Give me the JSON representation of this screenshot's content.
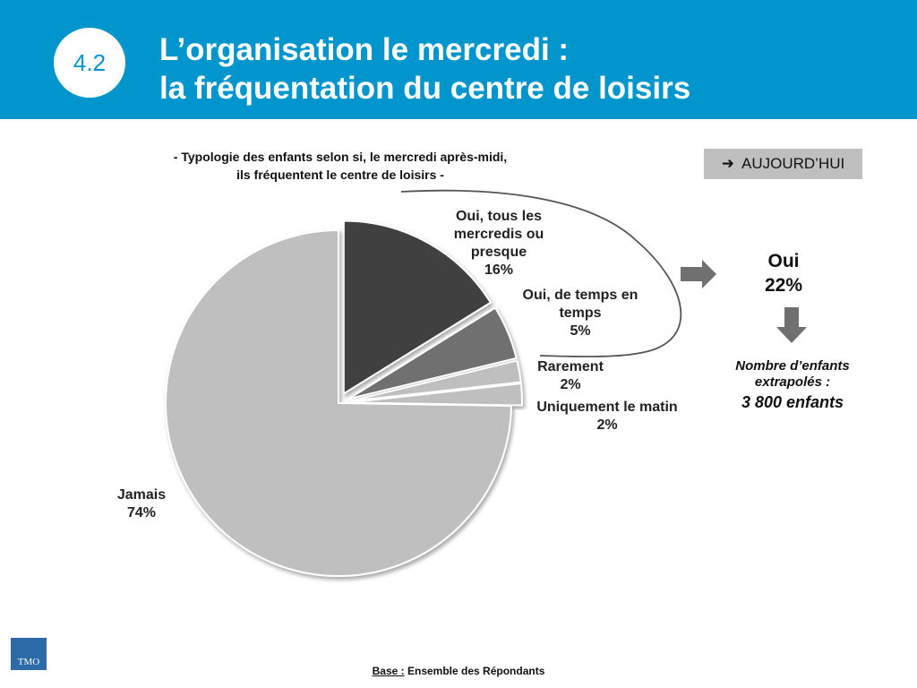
{
  "header": {
    "badge": "4.2",
    "title_line1": "L’organisation le mercredi :",
    "title_line2": "la fréquentation du centre de loisirs"
  },
  "subtitle": {
    "line1": "- Typologie des enfants selon si, le mercredi après-midi,",
    "line2": "ils fréquentent le centre de loisirs -"
  },
  "aujourdhui": {
    "icon": "right-arrow-icon",
    "label": "AUJOURD’HUI"
  },
  "chart_data": {
    "type": "pie",
    "title": "- Typologie des enfants selon si, le mercredi après-midi, ils fréquentent le centre de loisirs -",
    "unit": "%",
    "slices": [
      {
        "label_lines": [
          "Oui, tous les",
          "mercredis ou",
          "presque"
        ],
        "value": 16,
        "value_label": "16%",
        "color": "#404040",
        "exploded": true
      },
      {
        "label_lines": [
          "Oui, de temps  en",
          "temps"
        ],
        "value": 5,
        "value_label": "5%",
        "color": "#707070",
        "exploded": true
      },
      {
        "label_lines": [
          "Rarement"
        ],
        "value": 2,
        "value_label": "2%",
        "color": "#bfbfbf",
        "exploded": true
      },
      {
        "label_lines": [
          "Uniquement le matin"
        ],
        "value": 2,
        "value_label": "2%",
        "color": "#bfbfbf",
        "exploded": true
      },
      {
        "label_lines": [
          "Jamais"
        ],
        "value": 74,
        "value_label": "74%",
        "color": "#bfbfbf",
        "exploded": false
      }
    ]
  },
  "summary": {
    "oui_label": "Oui",
    "oui_value": "22%",
    "extrapolated_line1": "Nombre d’enfants",
    "extrapolated_line2": "extrapolés :",
    "extrapolated_value": "3 800 enfants"
  },
  "footer": {
    "logo": "TMO",
    "base_label": "Base :",
    "base_text": "Ensemble des Répondants"
  }
}
